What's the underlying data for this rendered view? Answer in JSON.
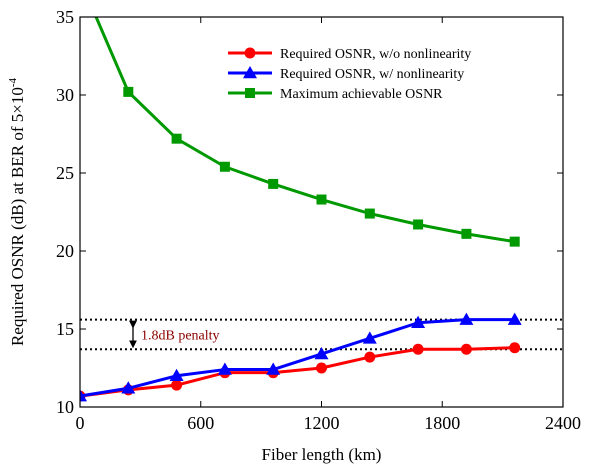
{
  "chart_data": {
    "type": "line",
    "xlabel": "Fiber length (km)",
    "ylabel_main": "Required OSNR (dB) at BER of 5×10",
    "ylabel_exp": "-4",
    "xlim": [
      0,
      2400
    ],
    "ylim": [
      10,
      35
    ],
    "xticks": [
      0,
      600,
      1200,
      1800,
      2400
    ],
    "yticks": [
      10,
      15,
      20,
      25,
      30,
      35
    ],
    "legend_position": "top-right",
    "grid": false,
    "series": [
      {
        "name": "Required OSNR, w/o nonlinearity",
        "color": "#ff0000",
        "marker": "circle",
        "x": [
          0,
          240,
          480,
          720,
          960,
          1200,
          1440,
          1680,
          1920,
          2160
        ],
        "values": [
          10.7,
          11.1,
          11.4,
          12.2,
          12.2,
          12.5,
          13.2,
          13.7,
          13.7,
          13.8
        ]
      },
      {
        "name": "Required OSNR, w/ nonlinearity",
        "color": "#0000ff",
        "marker": "triangle",
        "x": [
          0,
          240,
          480,
          720,
          960,
          1200,
          1440,
          1680,
          1920,
          2160
        ],
        "values": [
          10.7,
          11.2,
          12.0,
          12.4,
          12.4,
          13.4,
          14.4,
          15.4,
          15.6,
          15.6
        ]
      },
      {
        "name": "Maximum achievable OSNR",
        "color": "#009900",
        "marker": "square",
        "x": [
          80,
          240,
          480,
          720,
          960,
          1200,
          1440,
          1680,
          1920,
          2160
        ],
        "values": [
          35,
          30.2,
          27.2,
          25.4,
          24.3,
          23.3,
          22.4,
          21.7,
          21.1,
          20.6
        ]
      }
    ],
    "reference_lines": [
      15.6,
      13.7
    ],
    "annotation": {
      "text": "1.8dB penalty",
      "color": "#8b0000"
    }
  }
}
